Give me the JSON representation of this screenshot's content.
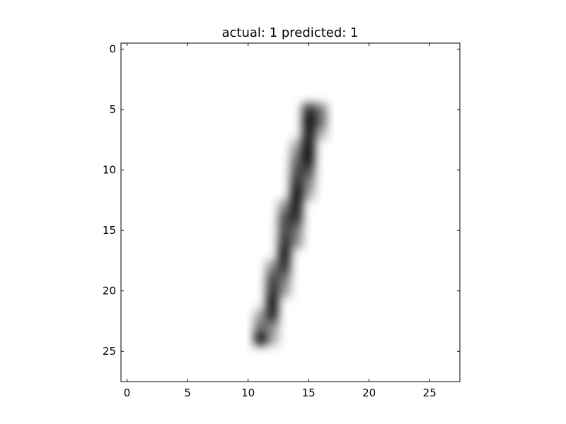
{
  "chart_data": {
    "type": "heatmap",
    "title": "actual: 1    predicted: 1",
    "colormap": "gray_r",
    "interpolation": "smooth",
    "xlabel": "",
    "ylabel": "",
    "xlim": [
      -0.5,
      27.5
    ],
    "ylim": [
      27.5,
      -0.5
    ],
    "xticks": [
      0,
      5,
      10,
      15,
      20,
      25
    ],
    "yticks": [
      0,
      5,
      10,
      15,
      20,
      25
    ],
    "xtick_labels": [
      "0",
      "5",
      "10",
      "15",
      "20",
      "25"
    ],
    "ytick_labels": [
      "0",
      "5",
      "10",
      "15",
      "20",
      "25"
    ],
    "grid": false,
    "image_size": [
      28,
      28
    ],
    "nonzero_pixels": [
      {
        "row": 5,
        "col": 15,
        "value": 0.85
      },
      {
        "row": 5,
        "col": 16,
        "value": 0.55
      },
      {
        "row": 6,
        "col": 15,
        "value": 1.0
      },
      {
        "row": 6,
        "col": 16,
        "value": 0.6
      },
      {
        "row": 7,
        "col": 15,
        "value": 0.95
      },
      {
        "row": 7,
        "col": 16,
        "value": 0.3
      },
      {
        "row": 8,
        "col": 14,
        "value": 0.35
      },
      {
        "row": 8,
        "col": 15,
        "value": 1.0
      },
      {
        "row": 9,
        "col": 14,
        "value": 0.55
      },
      {
        "row": 9,
        "col": 15,
        "value": 1.0
      },
      {
        "row": 10,
        "col": 14,
        "value": 0.7
      },
      {
        "row": 10,
        "col": 15,
        "value": 0.75
      },
      {
        "row": 11,
        "col": 14,
        "value": 0.85
      },
      {
        "row": 11,
        "col": 15,
        "value": 0.5
      },
      {
        "row": 12,
        "col": 14,
        "value": 1.0
      },
      {
        "row": 12,
        "col": 15,
        "value": 0.35
      },
      {
        "row": 13,
        "col": 13,
        "value": 0.45
      },
      {
        "row": 13,
        "col": 14,
        "value": 0.95
      },
      {
        "row": 14,
        "col": 13,
        "value": 0.7
      },
      {
        "row": 14,
        "col": 14,
        "value": 0.85
      },
      {
        "row": 15,
        "col": 13,
        "value": 0.75
      },
      {
        "row": 15,
        "col": 14,
        "value": 0.55
      },
      {
        "row": 16,
        "col": 13,
        "value": 0.85
      },
      {
        "row": 16,
        "col": 14,
        "value": 0.45
      },
      {
        "row": 17,
        "col": 13,
        "value": 1.0
      },
      {
        "row": 18,
        "col": 12,
        "value": 0.45
      },
      {
        "row": 18,
        "col": 13,
        "value": 0.85
      },
      {
        "row": 19,
        "col": 12,
        "value": 0.75
      },
      {
        "row": 19,
        "col": 13,
        "value": 0.55
      },
      {
        "row": 20,
        "col": 12,
        "value": 0.85
      },
      {
        "row": 20,
        "col": 13,
        "value": 0.4
      },
      {
        "row": 21,
        "col": 12,
        "value": 1.0
      },
      {
        "row": 22,
        "col": 12,
        "value": 0.9
      },
      {
        "row": 22,
        "col": 11,
        "value": 0.35
      },
      {
        "row": 23,
        "col": 11,
        "value": 0.6
      },
      {
        "row": 23,
        "col": 12,
        "value": 0.45
      },
      {
        "row": 24,
        "col": 11,
        "value": 1.0
      },
      {
        "row": 24,
        "col": 12,
        "value": 0.35
      }
    ]
  }
}
